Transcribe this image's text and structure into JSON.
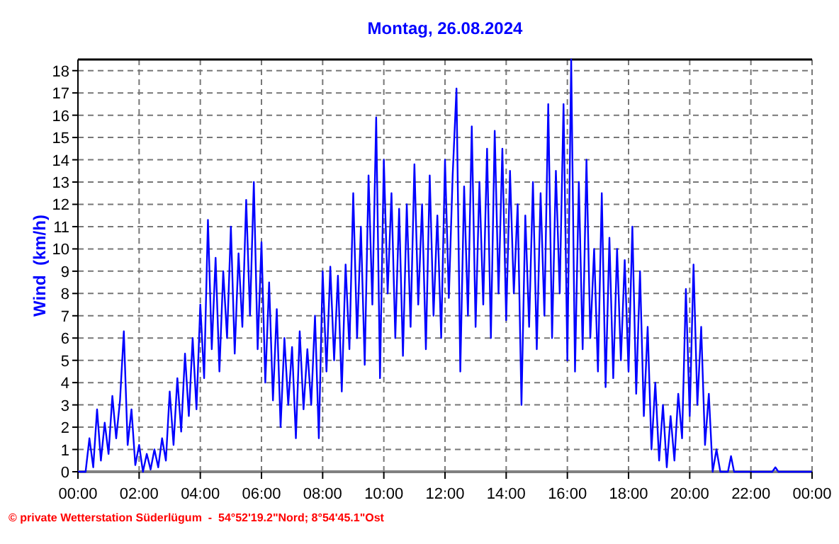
{
  "chart_data": {
    "type": "line",
    "title": "Montag, 26.08.2024",
    "ylabel": "Wind  (km/h)",
    "annotations": [
      "© private Wetterstation Süderlügum  -  54°52'19.2\"Nord; 8°54'45.1\"Ost"
    ],
    "xlim": [
      0,
      24
    ],
    "ylim": [
      0,
      18.5
    ],
    "xticks": [
      {
        "value": 0,
        "label": "00:00"
      },
      {
        "value": 2,
        "label": "02:00"
      },
      {
        "value": 4,
        "label": "04:00"
      },
      {
        "value": 6,
        "label": "06:00"
      },
      {
        "value": 8,
        "label": "08:00"
      },
      {
        "value": 10,
        "label": "10:00"
      },
      {
        "value": 12,
        "label": "12:00"
      },
      {
        "value": 14,
        "label": "14:00"
      },
      {
        "value": 16,
        "label": "16:00"
      },
      {
        "value": 18,
        "label": "18:00"
      },
      {
        "value": 20,
        "label": "20:00"
      },
      {
        "value": 22,
        "label": "22:00"
      },
      {
        "value": 24,
        "label": "00:00"
      }
    ],
    "yticks": [
      0,
      1,
      2,
      3,
      4,
      5,
      6,
      7,
      8,
      9,
      10,
      11,
      12,
      13,
      14,
      15,
      16,
      17,
      18
    ],
    "grid": true,
    "marker": "none",
    "line_style": "solid",
    "series": [
      {
        "color": "#0000ff",
        "x": [
          0,
          0.125,
          0.25,
          0.375,
          0.5,
          0.625,
          0.75,
          0.875,
          1,
          1.125,
          1.25,
          1.375,
          1.5,
          1.625,
          1.75,
          1.875,
          2,
          2.125,
          2.25,
          2.375,
          2.5,
          2.625,
          2.75,
          2.875,
          3,
          3.125,
          3.25,
          3.375,
          3.5,
          3.625,
          3.75,
          3.875,
          4,
          4.125,
          4.25,
          4.375,
          4.5,
          4.625,
          4.75,
          4.875,
          5,
          5.125,
          5.25,
          5.375,
          5.5,
          5.625,
          5.75,
          5.875,
          6,
          6.125,
          6.25,
          6.375,
          6.5,
          6.625,
          6.75,
          6.875,
          7,
          7.125,
          7.25,
          7.375,
          7.5,
          7.625,
          7.75,
          7.875,
          8,
          8.125,
          8.25,
          8.375,
          8.5,
          8.625,
          8.75,
          8.875,
          9,
          9.125,
          9.25,
          9.375,
          9.5,
          9.625,
          9.75,
          9.875,
          10,
          10.125,
          10.25,
          10.375,
          10.5,
          10.625,
          10.75,
          10.875,
          11,
          11.125,
          11.25,
          11.375,
          11.5,
          11.625,
          11.75,
          11.875,
          12,
          12.125,
          12.25,
          12.375,
          12.5,
          12.625,
          12.75,
          12.875,
          13,
          13.125,
          13.25,
          13.375,
          13.5,
          13.625,
          13.75,
          13.875,
          14,
          14.125,
          14.25,
          14.375,
          14.5,
          14.625,
          14.75,
          14.875,
          15,
          15.125,
          15.25,
          15.375,
          15.5,
          15.625,
          15.75,
          15.875,
          16,
          16.125,
          16.25,
          16.375,
          16.5,
          16.625,
          16.75,
          16.875,
          17,
          17.125,
          17.25,
          17.375,
          17.5,
          17.625,
          17.75,
          17.875,
          18,
          18.125,
          18.25,
          18.375,
          18.5,
          18.625,
          18.75,
          18.875,
          19,
          19.125,
          19.25,
          19.375,
          19.5,
          19.625,
          19.75,
          19.875,
          20,
          20.125,
          20.25,
          20.375,
          20.5,
          20.625,
          20.75,
          20.875,
          21,
          21.25,
          21.35,
          21.45,
          22.7,
          22.8,
          22.9,
          24
        ],
        "values": [
          0,
          0,
          0,
          1.5,
          0.2,
          2.8,
          0.5,
          2.2,
          0.8,
          3.4,
          1.5,
          3.2,
          6.3,
          1.2,
          2.8,
          0.3,
          1.2,
          0,
          0.8,
          0.1,
          1.0,
          0.2,
          1.5,
          0.5,
          3.6,
          1.2,
          4.2,
          1.8,
          5.3,
          2.5,
          6.0,
          2.8,
          7.5,
          4.2,
          11.3,
          5.5,
          9.6,
          4.5,
          9.0,
          6.0,
          11.0,
          5.3,
          9.8,
          6.5,
          12.2,
          7.0,
          13.0,
          5.5,
          10.3,
          4.0,
          8.5,
          3.2,
          7.3,
          2.0,
          6.0,
          3.0,
          5.6,
          1.5,
          6.3,
          2.8,
          5.5,
          3.0,
          7.0,
          1.5,
          9.0,
          4.5,
          9.2,
          5.0,
          8.8,
          3.6,
          9.3,
          5.5,
          12.5,
          6.0,
          11.0,
          4.8,
          13.3,
          7.5,
          15.9,
          4.2,
          14.0,
          8.0,
          12.5,
          6.0,
          11.8,
          5.2,
          12.0,
          6.5,
          13.8,
          7.5,
          12.0,
          5.5,
          13.3,
          7.0,
          11.5,
          6.0,
          14.0,
          7.8,
          13.3,
          17.2,
          4.5,
          12.8,
          7.0,
          15.5,
          6.5,
          13.0,
          7.5,
          14.5,
          6.0,
          15.3,
          8.0,
          14.5,
          6.8,
          13.5,
          8.0,
          12.0,
          3.0,
          11.5,
          6.5,
          13.0,
          5.5,
          12.5,
          7.0,
          16.5,
          6.0,
          13.5,
          8.0,
          16.5,
          5.0,
          18.5,
          4.5,
          13.0,
          5.5,
          14.0,
          6.0,
          10.0,
          4.5,
          12.5,
          3.8,
          10.5,
          4.2,
          10.0,
          5.0,
          9.5,
          4.5,
          11.0,
          3.5,
          9.0,
          2.5,
          6.5,
          1.0,
          4.0,
          0.5,
          3.0,
          0.2,
          2.5,
          0.5,
          3.5,
          1.5,
          8.2,
          2.5,
          9.3,
          3.0,
          6.5,
          1.2,
          3.5,
          0,
          1.0,
          0,
          0,
          0.7,
          0,
          0,
          0.2,
          0,
          0
        ]
      }
    ]
  }
}
